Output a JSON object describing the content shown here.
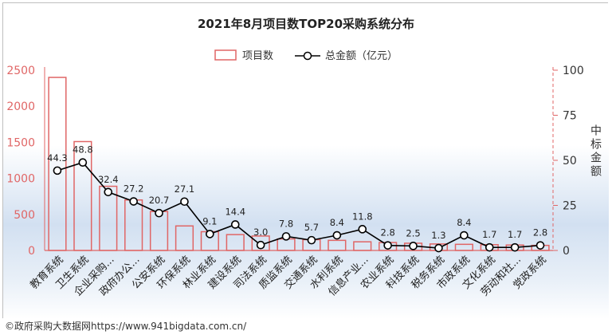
{
  "chart_data": {
    "type": "bar+line",
    "title": "2021年8月项目数TOP20采购系统分布",
    "categories": [
      "教育系统",
      "卫生系统",
      "企业采购...",
      "政府办公...",
      "公安系统",
      "环保系统",
      "林业系统",
      "建设系统",
      "司法系统",
      "质监系统",
      "交通系统",
      "水利系统",
      "信息产业...",
      "农业系统",
      "科技系统",
      "税务系统",
      "市政系统",
      "文化系统",
      "劳动和社...",
      "党政系统"
    ],
    "series": [
      {
        "name": "项目数",
        "type": "bar",
        "axis": "left",
        "color": "#e06666",
        "values": [
          2400,
          1510,
          890,
          700,
          540,
          340,
          260,
          220,
          200,
          160,
          150,
          140,
          120,
          110,
          100,
          90,
          85,
          80,
          75,
          70
        ]
      },
      {
        "name": "总金额（亿元）",
        "type": "line",
        "axis": "right",
        "color": "#000000",
        "values": [
          44.3,
          48.8,
          32.4,
          27.2,
          20.7,
          27.1,
          9.1,
          14.4,
          3.0,
          7.8,
          5.7,
          8.4,
          11.8,
          2.8,
          2.5,
          1.3,
          8.4,
          1.7,
          1.7,
          2.8
        ],
        "labels": [
          "44.3",
          "48.8",
          "32.4",
          "27.2",
          "20.7",
          "27.1",
          "9.1",
          "14.4",
          "3.0",
          "7.8",
          "5.7",
          "8.4",
          "11.8",
          "2.8",
          "2.5",
          "1.3",
          "8.4",
          "1.7",
          "1.7",
          "2.8"
        ]
      }
    ],
    "y_left": {
      "min": 0,
      "max": 2500,
      "ticks": [
        "0",
        "500",
        "1000",
        "1500",
        "2000",
        "2500"
      ],
      "color": "#e06666"
    },
    "y_right": {
      "min": 0,
      "max": 100,
      "ticks": [
        "0",
        "25",
        "50",
        "75",
        "100"
      ],
      "label": "中标金额",
      "color": "#333333"
    },
    "legend": {
      "position": "top-center"
    },
    "grid": false
  },
  "footer": "©政府采购大数据网https://www.941bigdata.com.cn/"
}
